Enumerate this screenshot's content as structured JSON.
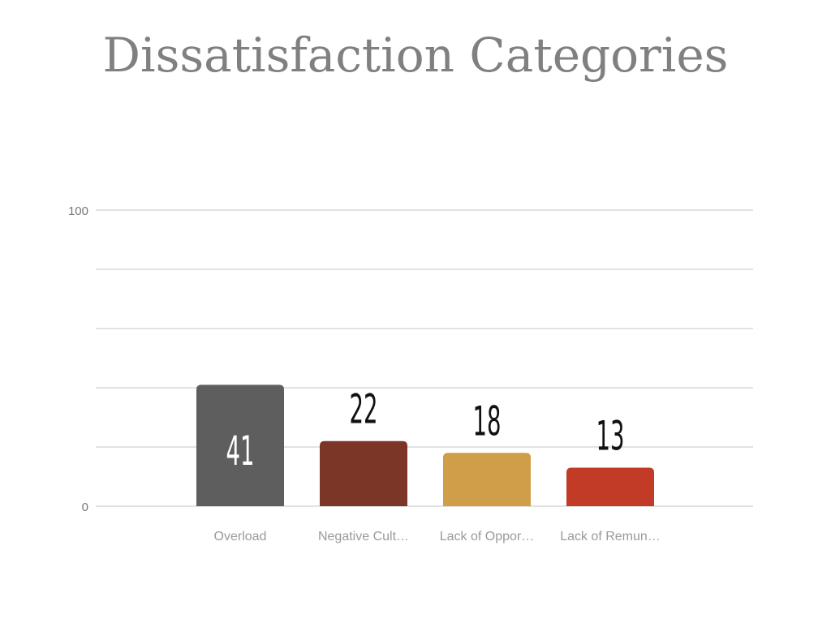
{
  "chart_data": {
    "type": "bar",
    "title": "Dissatisfaction Categories",
    "categories": [
      "Overload",
      "Negative Cult…",
      "Lack of Oppor…",
      "Lack of Remun…"
    ],
    "values": [
      41,
      22,
      18,
      13
    ],
    "colors": [
      "#5e5e5e",
      "#7b3627",
      "#cf9e48",
      "#c13b26"
    ],
    "label_colors": [
      "#ffffff",
      "#111111",
      "#111111",
      "#111111"
    ],
    "yticks": [
      0,
      100
    ],
    "ylim": [
      0,
      100
    ],
    "grid_step": 20,
    "grid": true,
    "xlabel": "",
    "ylabel": ""
  }
}
